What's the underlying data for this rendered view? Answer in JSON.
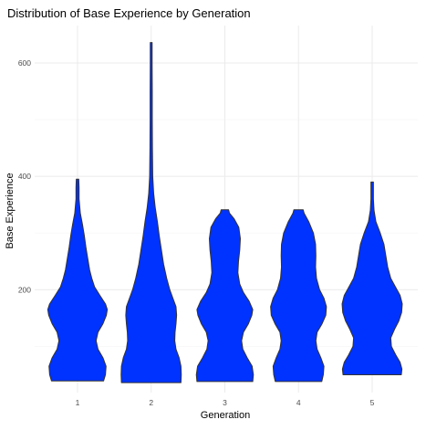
{
  "chart_data": {
    "type": "violin",
    "title": "Distribution of Base Experience by Generation",
    "xlabel": "Generation",
    "ylabel": "Base Experience",
    "categories": [
      "1",
      "2",
      "3",
      "4",
      "5"
    ],
    "y_ticks": [
      "200",
      "400",
      "600"
    ],
    "ylim": [
      0,
      660
    ],
    "grid": true,
    "fill_color": "#0033ff",
    "outline_color": "#333333",
    "series": [
      {
        "category": "1",
        "min": 39,
        "max": 395,
        "density": [
          [
            39,
            0.84
          ],
          [
            50,
            0.9
          ],
          [
            65,
            0.92
          ],
          [
            80,
            0.82
          ],
          [
            95,
            0.66
          ],
          [
            110,
            0.6
          ],
          [
            125,
            0.66
          ],
          [
            140,
            0.82
          ],
          [
            155,
            0.93
          ],
          [
            165,
            0.96
          ],
          [
            175,
            0.9
          ],
          [
            190,
            0.72
          ],
          [
            205,
            0.55
          ],
          [
            220,
            0.46
          ],
          [
            235,
            0.39
          ],
          [
            255,
            0.33
          ],
          [
            275,
            0.27
          ],
          [
            295,
            0.22
          ],
          [
            315,
            0.16
          ],
          [
            335,
            0.09
          ],
          [
            360,
            0.05
          ],
          [
            380,
            0.05
          ],
          [
            395,
            0.04
          ]
        ]
      },
      {
        "category": "2",
        "min": 36,
        "max": 636,
        "density": [
          [
            36,
            0.96
          ],
          [
            50,
            0.97
          ],
          [
            65,
            0.96
          ],
          [
            80,
            0.9
          ],
          [
            95,
            0.8
          ],
          [
            110,
            0.76
          ],
          [
            125,
            0.77
          ],
          [
            140,
            0.8
          ],
          [
            155,
            0.82
          ],
          [
            170,
            0.8
          ],
          [
            185,
            0.7
          ],
          [
            200,
            0.6
          ],
          [
            220,
            0.5
          ],
          [
            245,
            0.4
          ],
          [
            270,
            0.33
          ],
          [
            295,
            0.26
          ],
          [
            320,
            0.2
          ],
          [
            345,
            0.13
          ],
          [
            370,
            0.08
          ],
          [
            400,
            0.05
          ],
          [
            450,
            0.04
          ],
          [
            500,
            0.035
          ],
          [
            550,
            0.035
          ],
          [
            600,
            0.03
          ],
          [
            636,
            0.03
          ]
        ]
      },
      {
        "category": "3",
        "min": 38,
        "max": 341,
        "density": [
          [
            38,
            0.9
          ],
          [
            50,
            0.92
          ],
          [
            65,
            0.88
          ],
          [
            80,
            0.72
          ],
          [
            95,
            0.58
          ],
          [
            110,
            0.54
          ],
          [
            125,
            0.6
          ],
          [
            140,
            0.76
          ],
          [
            155,
            0.87
          ],
          [
            165,
            0.9
          ],
          [
            180,
            0.78
          ],
          [
            195,
            0.6
          ],
          [
            210,
            0.48
          ],
          [
            230,
            0.42
          ],
          [
            250,
            0.44
          ],
          [
            270,
            0.48
          ],
          [
            290,
            0.5
          ],
          [
            310,
            0.45
          ],
          [
            325,
            0.3
          ],
          [
            335,
            0.15
          ],
          [
            341,
            0.12
          ]
        ]
      },
      {
        "category": "4",
        "min": 38,
        "max": 341,
        "density": [
          [
            38,
            0.75
          ],
          [
            50,
            0.8
          ],
          [
            65,
            0.82
          ],
          [
            80,
            0.72
          ],
          [
            95,
            0.6
          ],
          [
            110,
            0.56
          ],
          [
            125,
            0.6
          ],
          [
            140,
            0.76
          ],
          [
            155,
            0.88
          ],
          [
            170,
            0.9
          ],
          [
            185,
            0.82
          ],
          [
            200,
            0.68
          ],
          [
            220,
            0.58
          ],
          [
            240,
            0.55
          ],
          [
            260,
            0.56
          ],
          [
            280,
            0.55
          ],
          [
            300,
            0.48
          ],
          [
            320,
            0.33
          ],
          [
            335,
            0.18
          ],
          [
            341,
            0.15
          ]
        ]
      },
      {
        "category": "5",
        "min": 50,
        "max": 390,
        "density": [
          [
            50,
            0.94
          ],
          [
            60,
            0.96
          ],
          [
            72,
            0.9
          ],
          [
            85,
            0.76
          ],
          [
            100,
            0.62
          ],
          [
            115,
            0.6
          ],
          [
            130,
            0.72
          ],
          [
            145,
            0.86
          ],
          [
            160,
            0.95
          ],
          [
            175,
            0.97
          ],
          [
            190,
            0.9
          ],
          [
            205,
            0.75
          ],
          [
            220,
            0.6
          ],
          [
            240,
            0.5
          ],
          [
            260,
            0.44
          ],
          [
            280,
            0.38
          ],
          [
            300,
            0.26
          ],
          [
            320,
            0.12
          ],
          [
            340,
            0.06
          ],
          [
            360,
            0.04
          ],
          [
            390,
            0.04
          ]
        ]
      }
    ]
  }
}
